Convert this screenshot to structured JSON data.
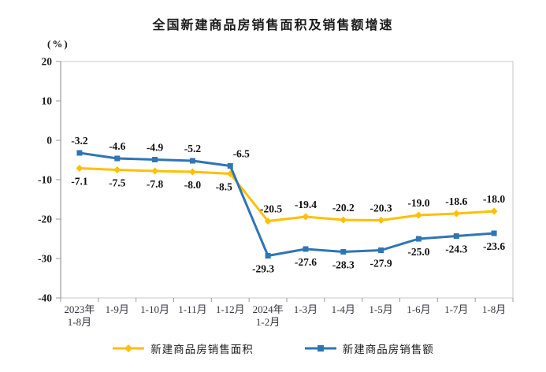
{
  "title": "全国新建商品房销售面积及销售额增速",
  "chart_data": {
    "type": "line",
    "title": "全国新建商品房销售面积及销售额增速",
    "unit_label": "(%)",
    "categories": [
      "2023年\n1-8月",
      "1-9月",
      "1-10月",
      "1-11月",
      "1-12月",
      "2024年\n1-2月",
      "1-3月",
      "1-4月",
      "1-5月",
      "1-6月",
      "1-7月",
      "1-8月"
    ],
    "series": [
      {
        "name": "新建商品房销售面积",
        "color": "#FFC000",
        "marker": "diamond",
        "values": [
          -7.1,
          -7.5,
          -7.8,
          -8.0,
          -8.5,
          -20.5,
          -19.4,
          -20.2,
          -20.3,
          -19.0,
          -18.6,
          -18.0
        ],
        "label_sides": [
          "below",
          "below",
          "below",
          "below",
          "below",
          "above",
          "above",
          "above",
          "above",
          "above",
          "above",
          "above"
        ]
      },
      {
        "name": "新建商品房销售额",
        "color": "#2E75B6",
        "marker": "square",
        "values": [
          -3.2,
          -4.6,
          -4.9,
          -5.2,
          -6.5,
          -29.3,
          -27.6,
          -28.3,
          -27.9,
          -25.0,
          -24.3,
          -23.6
        ],
        "label_sides": [
          "above",
          "above",
          "above",
          "above",
          "above",
          "below",
          "below",
          "below",
          "below",
          "below",
          "below",
          "below"
        ]
      }
    ],
    "ylim": [
      -40,
      20
    ],
    "yticks": [
      20,
      10,
      0,
      -10,
      -20,
      -30,
      -40
    ],
    "grid": false,
    "legend_position": "bottom",
    "colors": {
      "axis_line": "#9a9a9a",
      "plot_border": "#c9c9c9",
      "tick_label": "#1a1a1a",
      "x_label": "#35353f",
      "data_label": "#111111"
    }
  }
}
